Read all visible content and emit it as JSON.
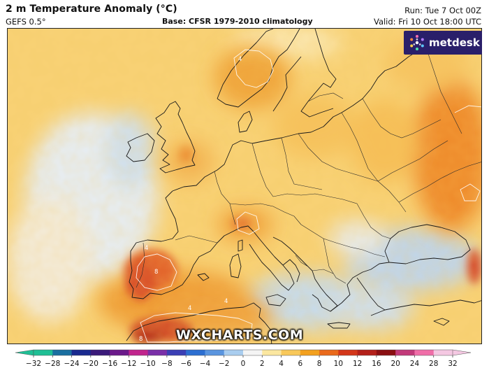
{
  "header": {
    "title": "2 m Temperature Anomaly (°C)",
    "model": "GEFS 0.5°",
    "base": "Base: CFSR 1979-2010 climatology",
    "run": "Run: Tue 7 Oct 00Z",
    "valid": "Valid: Fri 10 Oct 18:00 UTC"
  },
  "logo": {
    "text": "metdesk",
    "icon": "metdesk-star-logo"
  },
  "watermark": {
    "text": "WXCHARTS.COM"
  },
  "map": {
    "region": "Europe",
    "contour_labels": [
      "4",
      "4",
      "4",
      "4",
      "8",
      "8"
    ]
  },
  "colorbar": {
    "ticks": [
      -32,
      -28,
      -24,
      -20,
      -16,
      -12,
      -10,
      -8,
      -6,
      -4,
      -2,
      0,
      2,
      4,
      6,
      8,
      10,
      12,
      16,
      20,
      24,
      28,
      32
    ],
    "colors": {
      "cold_end": "#1fbf95",
      "deep_blue": "#1a2a8f",
      "purple": "#6b1a8a",
      "magenta": "#c1258d",
      "blue": "#2c6fd1",
      "light_blue": "#a9cdef",
      "neutral": "#f4f4f4",
      "light_yellow": "#fbe7a0",
      "orange": "#f3a01e",
      "red": "#d3361a",
      "dark_red": "#8a0f12",
      "pink": "#f06ea8",
      "hot_end": "#f4c8e2"
    }
  }
}
